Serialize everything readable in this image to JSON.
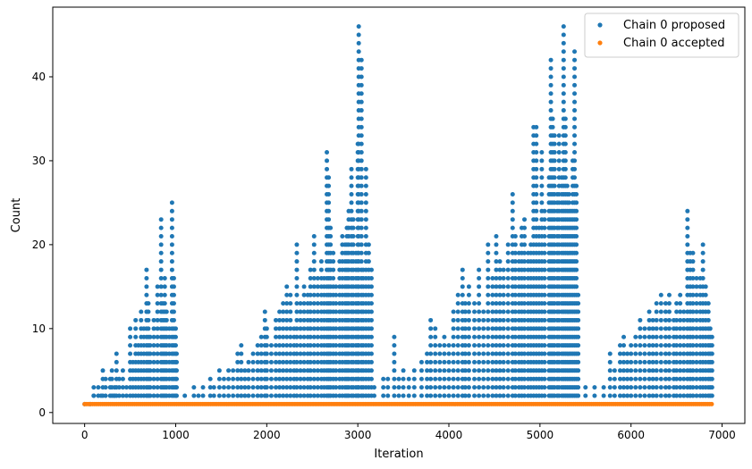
{
  "chart_data": {
    "type": "scatter",
    "xlabel": "Iteration",
    "ylabel": "Count",
    "xlim": [
      -350,
      7250
    ],
    "ylim": [
      -1.3,
      48.3
    ],
    "x_ticks": [
      0,
      1000,
      2000,
      3000,
      4000,
      5000,
      6000,
      7000
    ],
    "y_ticks": [
      0,
      10,
      20,
      30,
      40
    ],
    "grid": false,
    "legend_position": "top-right",
    "series": [
      {
        "name": "Chain 0 proposed",
        "color": "#1f77b4",
        "points": [
          [
            0,
            1
          ],
          [
            60,
            1
          ],
          [
            100,
            2
          ],
          [
            100,
            3
          ],
          [
            150,
            3
          ],
          [
            180,
            2
          ],
          [
            200,
            5
          ],
          [
            230,
            4
          ],
          [
            280,
            4
          ],
          [
            300,
            5
          ],
          [
            320,
            2
          ],
          [
            330,
            3
          ],
          [
            350,
            7
          ],
          [
            380,
            4
          ],
          [
            420,
            5
          ],
          [
            460,
            3
          ],
          [
            500,
            10
          ],
          [
            530,
            6
          ],
          [
            560,
            11
          ],
          [
            590,
            8
          ],
          [
            620,
            12
          ],
          [
            650,
            10
          ],
          [
            680,
            17
          ],
          [
            700,
            13
          ],
          [
            720,
            9
          ],
          [
            760,
            11
          ],
          [
            800,
            15
          ],
          [
            840,
            23
          ],
          [
            860,
            13
          ],
          [
            880,
            16
          ],
          [
            900,
            12
          ],
          [
            930,
            10
          ],
          [
            960,
            25
          ],
          [
            980,
            16
          ],
          [
            1000,
            10
          ],
          [
            1010,
            7
          ],
          [
            1100,
            2
          ],
          [
            1200,
            3
          ],
          [
            1250,
            2
          ],
          [
            1300,
            3
          ],
          [
            1380,
            4
          ],
          [
            1420,
            3
          ],
          [
            1480,
            5
          ],
          [
            1530,
            4
          ],
          [
            1580,
            5
          ],
          [
            1630,
            5
          ],
          [
            1680,
            7
          ],
          [
            1720,
            8
          ],
          [
            1760,
            5
          ],
          [
            1800,
            6
          ],
          [
            1850,
            7
          ],
          [
            1900,
            8
          ],
          [
            1940,
            9
          ],
          [
            1980,
            12
          ],
          [
            2000,
            10
          ],
          [
            2050,
            8
          ],
          [
            2100,
            11
          ],
          [
            2140,
            12
          ],
          [
            2180,
            13
          ],
          [
            2220,
            15
          ],
          [
            2260,
            14
          ],
          [
            2300,
            10
          ],
          [
            2330,
            20
          ],
          [
            2370,
            13
          ],
          [
            2410,
            15
          ],
          [
            2450,
            14
          ],
          [
            2480,
            17
          ],
          [
            2520,
            21
          ],
          [
            2560,
            16
          ],
          [
            2600,
            18
          ],
          [
            2630,
            16
          ],
          [
            2660,
            31
          ],
          [
            2680,
            28
          ],
          [
            2700,
            22
          ],
          [
            2730,
            19
          ],
          [
            2760,
            15
          ],
          [
            2800,
            18
          ],
          [
            2830,
            21
          ],
          [
            2860,
            20
          ],
          [
            2880,
            22
          ],
          [
            2900,
            24
          ],
          [
            2930,
            29
          ],
          [
            2950,
            23
          ],
          [
            2980,
            19
          ],
          [
            3000,
            32
          ],
          [
            3010,
            46
          ],
          [
            3040,
            42
          ],
          [
            3060,
            17
          ],
          [
            3090,
            29
          ],
          [
            3120,
            20
          ],
          [
            3150,
            17
          ],
          [
            3180,
            3
          ],
          [
            3280,
            4
          ],
          [
            3330,
            4
          ],
          [
            3400,
            9
          ],
          [
            3450,
            4
          ],
          [
            3500,
            5
          ],
          [
            3560,
            4
          ],
          [
            3620,
            5
          ],
          [
            3700,
            6
          ],
          [
            3760,
            7
          ],
          [
            3800,
            11
          ],
          [
            3850,
            10
          ],
          [
            3900,
            8
          ],
          [
            3950,
            9
          ],
          [
            4000,
            8
          ],
          [
            4050,
            12
          ],
          [
            4100,
            14
          ],
          [
            4150,
            17
          ],
          [
            4180,
            13
          ],
          [
            4220,
            15
          ],
          [
            4280,
            13
          ],
          [
            4330,
            17
          ],
          [
            4380,
            12
          ],
          [
            4430,
            20
          ],
          [
            4480,
            16
          ],
          [
            4520,
            21
          ],
          [
            4560,
            18
          ],
          [
            4600,
            17
          ],
          [
            4650,
            20
          ],
          [
            4700,
            26
          ],
          [
            4730,
            21
          ],
          [
            4770,
            19
          ],
          [
            4800,
            22
          ],
          [
            4830,
            23
          ],
          [
            4870,
            19
          ],
          [
            4900,
            20
          ],
          [
            4930,
            34
          ],
          [
            4960,
            34
          ],
          [
            4990,
            22
          ],
          [
            5020,
            31
          ],
          [
            5050,
            24
          ],
          [
            5100,
            28
          ],
          [
            5120,
            42
          ],
          [
            5140,
            35
          ],
          [
            5160,
            33
          ],
          [
            5190,
            26
          ],
          [
            5210,
            33
          ],
          [
            5240,
            28
          ],
          [
            5260,
            46
          ],
          [
            5280,
            35
          ],
          [
            5300,
            27
          ],
          [
            5320,
            26
          ],
          [
            5340,
            24
          ],
          [
            5360,
            30
          ],
          [
            5380,
            43
          ],
          [
            5400,
            27
          ],
          [
            5420,
            14
          ],
          [
            5500,
            3
          ],
          [
            5600,
            3
          ],
          [
            5700,
            3
          ],
          [
            5770,
            7
          ],
          [
            5820,
            5
          ],
          [
            5880,
            8
          ],
          [
            5920,
            9
          ],
          [
            5960,
            7
          ],
          [
            6000,
            8
          ],
          [
            6050,
            9
          ],
          [
            6100,
            11
          ],
          [
            6150,
            10
          ],
          [
            6200,
            12
          ],
          [
            6240,
            11
          ],
          [
            6280,
            13
          ],
          [
            6330,
            14
          ],
          [
            6380,
            13
          ],
          [
            6420,
            14
          ],
          [
            6470,
            11
          ],
          [
            6500,
            13
          ],
          [
            6540,
            14
          ],
          [
            6580,
            12
          ],
          [
            6620,
            24
          ],
          [
            6650,
            19
          ],
          [
            6680,
            19
          ],
          [
            6720,
            16
          ],
          [
            6760,
            16
          ],
          [
            6790,
            20
          ],
          [
            6820,
            15
          ],
          [
            6850,
            13
          ],
          [
            6870,
            10
          ],
          [
            6890,
            9
          ]
        ]
      },
      {
        "name": "Chain 0 accepted",
        "color": "#ff7f0e",
        "points": [
          [
            0,
            1
          ],
          [
            6890,
            1
          ]
        ]
      }
    ]
  }
}
